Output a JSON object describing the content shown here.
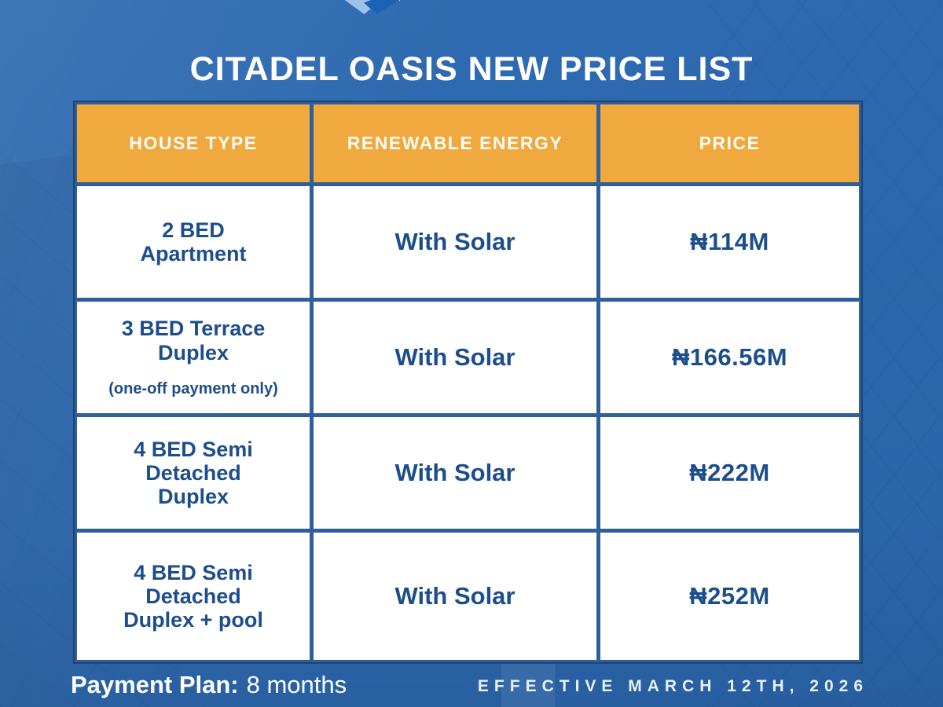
{
  "title": "CITADEL OASIS NEW PRICE LIST",
  "logo": {
    "name": "cube-logo (cropped at top edge)"
  },
  "table": {
    "headers": [
      "HOUSE TYPE",
      "RENEWABLE ENERGY",
      "PRICE"
    ],
    "rows": [
      {
        "house_type_lines": [
          "2 BED",
          "Apartment"
        ],
        "note": "",
        "renewable_energy": "With Solar",
        "price": "₦114M"
      },
      {
        "house_type_lines": [
          "3 BED Terrace",
          "Duplex"
        ],
        "note": "(one-off payment only)",
        "renewable_energy": "With Solar",
        "price": "₦166.56M"
      },
      {
        "house_type_lines": [
          "4 BED Semi",
          "Detached",
          "Duplex"
        ],
        "note": "",
        "renewable_energy": "With Solar",
        "price": "₦222M"
      },
      {
        "house_type_lines": [
          "4 BED Semi",
          "Detached",
          "Duplex + pool"
        ],
        "note": "",
        "renewable_energy": "With Solar",
        "price": "₦252M"
      }
    ]
  },
  "footer": {
    "payment_plan_label": "Payment Plan:",
    "payment_plan_value": "8 months",
    "effective_date": "EFFECTIVE MARCH 12TH, 2026"
  },
  "colors": {
    "background_blue": "#2D68AE",
    "header_orange": "#EFA93F",
    "cell_text_navy": "#1D4E8C",
    "grid_line_blue": "#2E5F9A",
    "title_white": "#FFFFFF"
  }
}
